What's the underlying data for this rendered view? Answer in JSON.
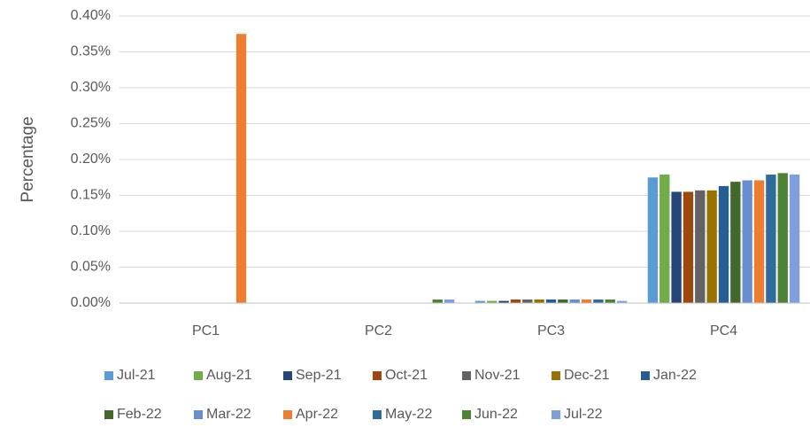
{
  "chart_data": {
    "type": "bar",
    "ylabel": "Percentage",
    "categories": [
      "PC1",
      "PC2",
      "PC3",
      "PC4"
    ],
    "series": [
      {
        "name": "Jul-21",
        "color": "#5b9bd5",
        "values": [
          0,
          0,
          0.003,
          0.175
        ]
      },
      {
        "name": "Aug-21",
        "color": "#70ad47",
        "values": [
          0,
          0,
          0.003,
          0.179
        ]
      },
      {
        "name": "Sep-21",
        "color": "#264478",
        "values": [
          0,
          0,
          0.003,
          0.155
        ]
      },
      {
        "name": "Oct-21",
        "color": "#9e480e",
        "values": [
          0,
          0,
          0.005,
          0.155
        ]
      },
      {
        "name": "Nov-21",
        "color": "#636363",
        "values": [
          0,
          0,
          0.005,
          0.157
        ]
      },
      {
        "name": "Dec-21",
        "color": "#997300",
        "values": [
          0,
          0,
          0.005,
          0.157
        ]
      },
      {
        "name": "Jan-22",
        "color": "#255e91",
        "values": [
          0,
          0,
          0.005,
          0.163
        ]
      },
      {
        "name": "Feb-22",
        "color": "#43682b",
        "values": [
          0,
          0,
          0.005,
          0.169
        ]
      },
      {
        "name": "Mar-22",
        "color": "#698ed0",
        "values": [
          0,
          0,
          0.005,
          0.171
        ]
      },
      {
        "name": "Apr-22",
        "color": "#ed7d31",
        "values": [
          0.375,
          0,
          0.005,
          0.171
        ]
      },
      {
        "name": "May-22",
        "color": "#2e6c9c",
        "values": [
          0,
          0,
          0.005,
          0.179
        ]
      },
      {
        "name": "Jun-22",
        "color": "#4e8235",
        "values": [
          0,
          0.005,
          0.005,
          0.181
        ]
      },
      {
        "name": "Jul-22",
        "color": "#7f9fdc",
        "values": [
          0,
          0.005,
          0.003,
          0.179
        ]
      }
    ],
    "ylim": [
      0,
      0.4
    ],
    "yticks": [
      {
        "value": 0,
        "label": "0.00%"
      },
      {
        "value": 0.05,
        "label": "0.05%"
      },
      {
        "value": 0.1,
        "label": "0.10%"
      },
      {
        "value": 0.15,
        "label": "0.15%"
      },
      {
        "value": 0.2,
        "label": "0.20%"
      },
      {
        "value": 0.25,
        "label": "0.25%"
      },
      {
        "value": 0.3,
        "label": "0.30%"
      },
      {
        "value": 0.35,
        "label": "0.35%"
      },
      {
        "value": 0.4,
        "label": "0.40%"
      }
    ],
    "grid": true,
    "legend": "bottom"
  }
}
